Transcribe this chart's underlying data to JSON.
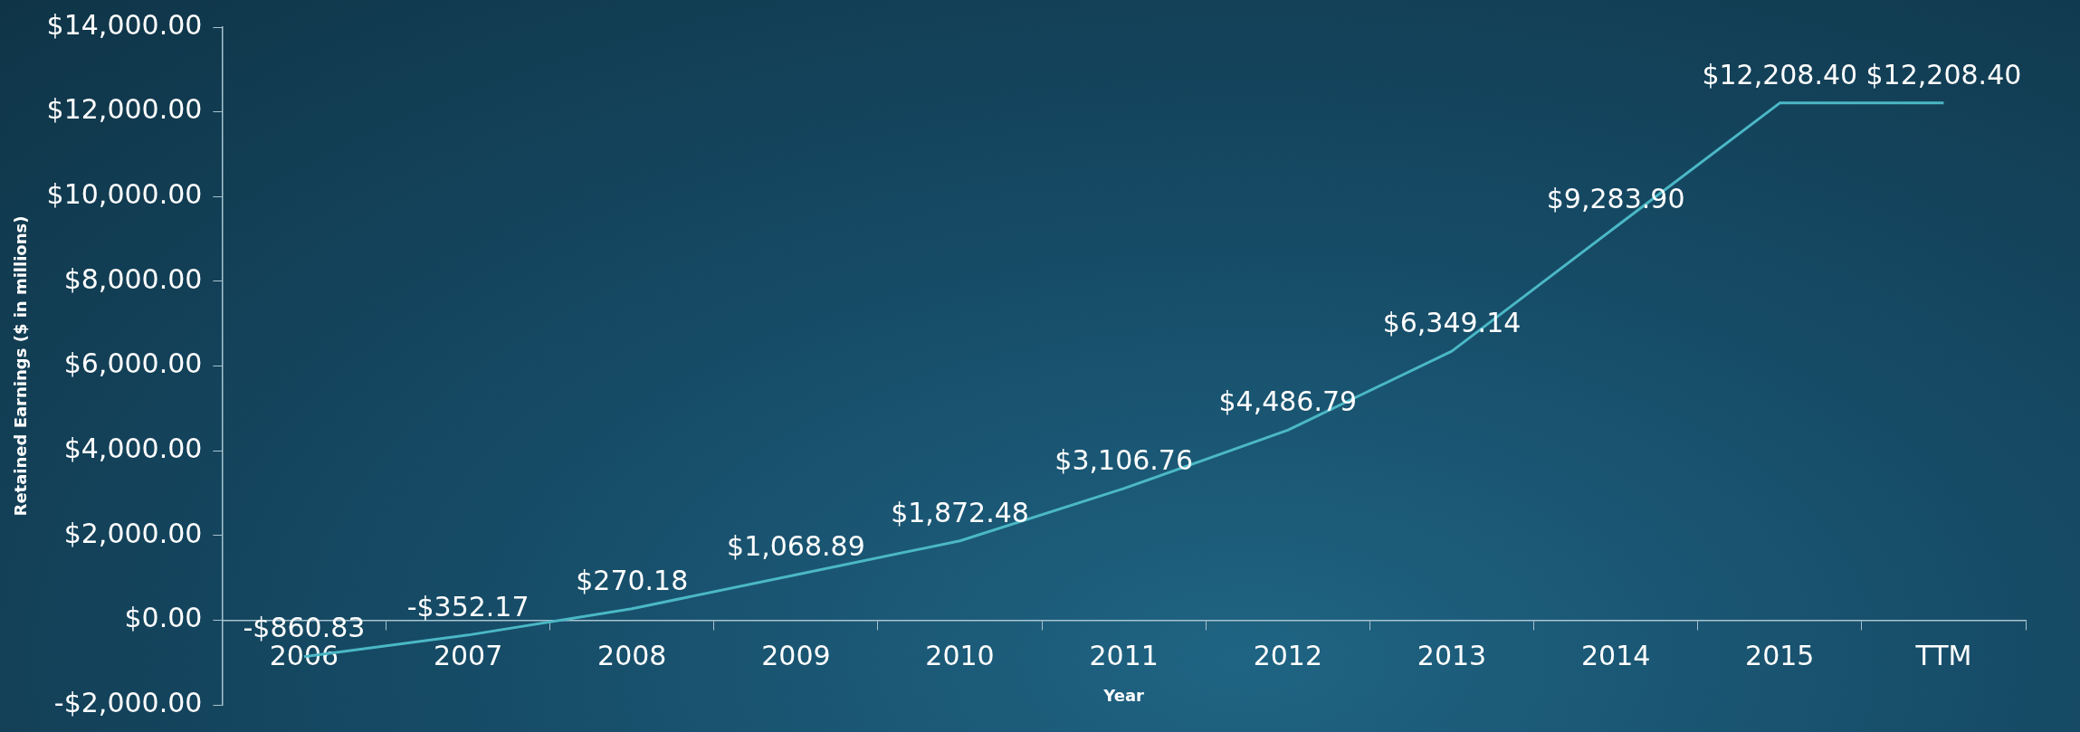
{
  "chart_data": {
    "type": "line",
    "xlabel": "Year",
    "ylabel": "Retained Earnings ($ in millions)",
    "categories": [
      "2006",
      "2007",
      "2008",
      "2009",
      "2010",
      "2011",
      "2012",
      "2013",
      "2014",
      "2015",
      "TTM"
    ],
    "series": [
      {
        "color": "#4bb8c6",
        "values": [
          -860.83,
          -352.17,
          270.18,
          1068.89,
          1872.48,
          3106.76,
          4486.79,
          6349.14,
          9283.9,
          12208.4,
          12208.4
        ],
        "value_labels": [
          "-$860.83",
          "-$352.17",
          "$270.18",
          "$1,068.89",
          "$1,872.48",
          "$3,106.76",
          "$4,486.79",
          "$6,349.14",
          "$9,283.90",
          "$12,208.40",
          "$12,208.40"
        ]
      }
    ],
    "ylim": [
      -2000,
      14000
    ],
    "yticks": [
      {
        "value": -2000,
        "label": "-$2,000.00"
      },
      {
        "value": 0,
        "label": "$0.00"
      },
      {
        "value": 2000,
        "label": "$2,000.00"
      },
      {
        "value": 4000,
        "label": "$4,000.00"
      },
      {
        "value": 6000,
        "label": "$6,000.00"
      },
      {
        "value": 8000,
        "label": "$8,000.00"
      },
      {
        "value": 10000,
        "label": "$10,000.00"
      },
      {
        "value": 12000,
        "label": "$12,000.00"
      },
      {
        "value": 14000,
        "label": "$14,000.00"
      }
    ],
    "grid": false,
    "legend": false,
    "marker": "none",
    "line_style": "solid"
  }
}
